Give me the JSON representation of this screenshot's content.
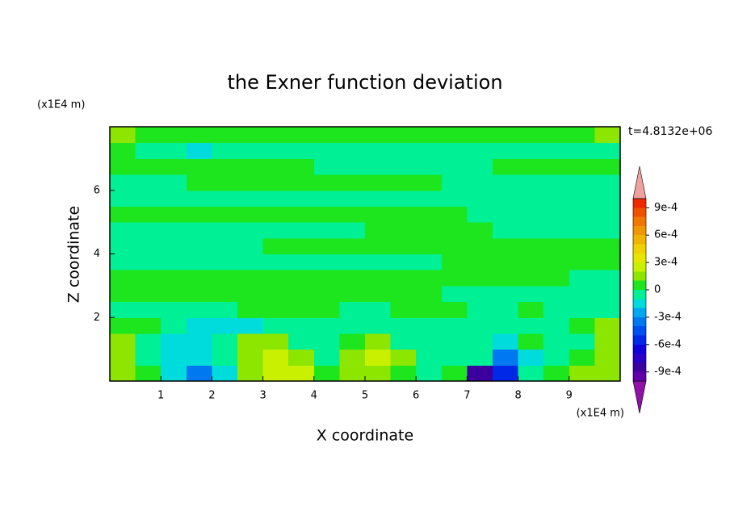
{
  "chart_data": {
    "type": "contour",
    "title": "the Exner function deviation",
    "xlabel": "X coordinate",
    "ylabel": "Z coordinate",
    "x_unit": "(x1E4 m)",
    "y_unit": "(x1E4 m)",
    "time_label": "t=4.8132e+06",
    "xlim": [
      0,
      10
    ],
    "ylim": [
      0,
      8
    ],
    "xticks": [
      1,
      2,
      3,
      4,
      5,
      6,
      7,
      8,
      9
    ],
    "yticks": [
      2,
      4,
      6
    ],
    "x": [
      0.25,
      0.75,
      1.25,
      1.75,
      2.25,
      2.75,
      3.25,
      3.75,
      4.25,
      4.75,
      5.25,
      5.75,
      6.25,
      6.75,
      7.25,
      7.75,
      8.25,
      8.75,
      9.25,
      9.75
    ],
    "y": [
      0.25,
      0.75,
      1.25,
      1.75,
      2.25,
      2.75,
      3.25,
      3.75,
      4.25,
      4.75,
      5.25,
      5.75,
      6.25,
      6.75,
      7.25,
      7.75
    ],
    "z": [
      [
        0.00015,
        5e-05,
        -0.00015,
        -0.00035,
        -0.00015,
        0.00015,
        0.00025,
        0.00025,
        5e-05,
        0.00015,
        0.00015,
        5e-05,
        -5e-05,
        5e-05,
        -0.0008,
        -0.0005,
        -5e-05,
        5e-05,
        0.00015,
        0.00015
      ],
      [
        0.00015,
        -5e-05,
        -0.00015,
        -0.00015,
        -5e-05,
        0.00015,
        0.00025,
        0.00015,
        -5e-05,
        0.00015,
        0.00025,
        0.00015,
        -5e-05,
        -5e-05,
        -5e-05,
        -0.00035,
        -0.00015,
        -5e-05,
        5e-05,
        0.00015
      ],
      [
        0.00015,
        -5e-05,
        -0.00015,
        -0.00015,
        -5e-05,
        0.00015,
        0.00015,
        -5e-05,
        -5e-05,
        5e-05,
        0.00015,
        -5e-05,
        -5e-05,
        -5e-05,
        -5e-05,
        -0.00015,
        5e-05,
        -5e-05,
        -5e-05,
        0.00015
      ],
      [
        5e-05,
        5e-05,
        -5e-05,
        -0.00015,
        -0.00015,
        -0.00015,
        -5e-05,
        -5e-05,
        -5e-05,
        -5e-05,
        -5e-05,
        -5e-05,
        -5e-05,
        -5e-05,
        -5e-05,
        -5e-05,
        -5e-05,
        -5e-05,
        5e-05,
        0.00015
      ],
      [
        -5e-05,
        -5e-05,
        -5e-05,
        -5e-05,
        -5e-05,
        5e-05,
        5e-05,
        5e-05,
        5e-05,
        -5e-05,
        -5e-05,
        5e-05,
        5e-05,
        5e-05,
        -5e-05,
        -5e-05,
        5e-05,
        -5e-05,
        -5e-05,
        -5e-05
      ],
      [
        5e-05,
        5e-05,
        5e-05,
        5e-05,
        5e-05,
        5e-05,
        5e-05,
        5e-05,
        5e-05,
        5e-05,
        5e-05,
        5e-05,
        5e-05,
        -5e-05,
        -5e-05,
        -5e-05,
        -5e-05,
        -5e-05,
        -5e-05,
        -5e-05
      ],
      [
        5e-05,
        5e-05,
        5e-05,
        5e-05,
        5e-05,
        5e-05,
        5e-05,
        5e-05,
        5e-05,
        5e-05,
        5e-05,
        5e-05,
        5e-05,
        5e-05,
        5e-05,
        5e-05,
        5e-05,
        5e-05,
        -5e-05,
        -5e-05
      ],
      [
        -5e-05,
        -5e-05,
        -5e-05,
        -5e-05,
        -5e-05,
        -5e-05,
        -5e-05,
        -5e-05,
        -5e-05,
        -5e-05,
        -5e-05,
        -5e-05,
        -5e-05,
        5e-05,
        5e-05,
        5e-05,
        5e-05,
        5e-05,
        5e-05,
        5e-05
      ],
      [
        -5e-05,
        -5e-05,
        -5e-05,
        -5e-05,
        -5e-05,
        -5e-05,
        5e-05,
        5e-05,
        5e-05,
        5e-05,
        5e-05,
        5e-05,
        5e-05,
        5e-05,
        5e-05,
        5e-05,
        5e-05,
        5e-05,
        5e-05,
        5e-05
      ],
      [
        -5e-05,
        -5e-05,
        -5e-05,
        -5e-05,
        -5e-05,
        -5e-05,
        -5e-05,
        -5e-05,
        -5e-05,
        -5e-05,
        5e-05,
        5e-05,
        5e-05,
        5e-05,
        5e-05,
        -5e-05,
        -5e-05,
        -5e-05,
        -5e-05,
        -5e-05
      ],
      [
        5e-05,
        5e-05,
        5e-05,
        5e-05,
        5e-05,
        5e-05,
        5e-05,
        5e-05,
        5e-05,
        5e-05,
        5e-05,
        5e-05,
        5e-05,
        5e-05,
        -5e-05,
        -5e-05,
        -5e-05,
        -5e-05,
        -5e-05,
        -5e-05
      ],
      [
        -5e-05,
        -5e-05,
        -5e-05,
        -5e-05,
        -5e-05,
        -5e-05,
        -5e-05,
        -5e-05,
        -5e-05,
        -5e-05,
        -5e-05,
        -5e-05,
        -5e-05,
        -5e-05,
        -5e-05,
        -5e-05,
        -5e-05,
        -5e-05,
        -5e-05,
        -5e-05
      ],
      [
        -5e-05,
        -5e-05,
        -5e-05,
        5e-05,
        5e-05,
        5e-05,
        5e-05,
        5e-05,
        5e-05,
        5e-05,
        5e-05,
        5e-05,
        5e-05,
        -5e-05,
        -5e-05,
        -5e-05,
        -5e-05,
        -5e-05,
        -5e-05,
        -5e-05
      ],
      [
        5e-05,
        5e-05,
        5e-05,
        5e-05,
        5e-05,
        5e-05,
        5e-05,
        5e-05,
        -5e-05,
        -5e-05,
        -5e-05,
        -5e-05,
        -5e-05,
        -5e-05,
        -5e-05,
        5e-05,
        5e-05,
        5e-05,
        5e-05,
        5e-05
      ],
      [
        5e-05,
        -5e-05,
        -5e-05,
        -0.00015,
        -5e-05,
        -5e-05,
        -5e-05,
        -5e-05,
        -5e-05,
        -5e-05,
        -5e-05,
        -5e-05,
        -5e-05,
        -5e-05,
        -5e-05,
        -5e-05,
        -5e-05,
        -5e-05,
        -5e-05,
        -5e-05
      ],
      [
        0.00015,
        5e-05,
        5e-05,
        5e-05,
        5e-05,
        5e-05,
        5e-05,
        5e-05,
        5e-05,
        5e-05,
        5e-05,
        5e-05,
        5e-05,
        5e-05,
        5e-05,
        5e-05,
        5e-05,
        5e-05,
        5e-05,
        0.00015
      ]
    ],
    "levels": [
      -0.001,
      -0.0009,
      -0.0008,
      -0.0007,
      -0.0006,
      -0.0005,
      -0.0004,
      -0.0003,
      -0.0002,
      -0.0001,
      0,
      0.0001,
      0.0002,
      0.0003,
      0.0004,
      0.0005,
      0.0006,
      0.0007,
      0.0008,
      0.0009,
      0.001
    ],
    "colors": [
      "#9010a8",
      "#6000a8",
      "#3c00a0",
      "#2800c8",
      "#1000dc",
      "#0028e6",
      "#0050f0",
      "#0078f0",
      "#00a8f0",
      "#00dcdc",
      "#00f096",
      "#1ee61e",
      "#8ce600",
      "#c8f000",
      "#e6e600",
      "#f0d200",
      "#f0b400",
      "#f09600",
      "#f07800",
      "#f05000",
      "#f02800",
      "#f0a0a0"
    ],
    "colorbar_ticks": [
      {
        "value": -0.0009,
        "label": "-9e-4"
      },
      {
        "value": -0.0006,
        "label": "-6e-4"
      },
      {
        "value": -0.0003,
        "label": "-3e-4"
      },
      0,
      {
        "value": 0.0003,
        "label": "3e-4"
      },
      {
        "value": 0.0006,
        "label": "6e-4"
      },
      {
        "value": 0.0009,
        "label": "9e-4"
      }
    ]
  }
}
